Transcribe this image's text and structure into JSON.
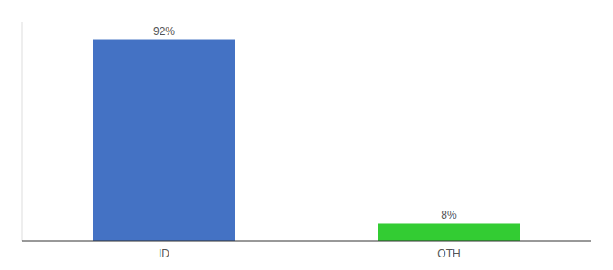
{
  "chart_data": {
    "type": "bar",
    "categories": [
      "ID",
      "OTH"
    ],
    "values": [
      92,
      8
    ],
    "value_labels": [
      "92%",
      "8%"
    ],
    "colors": [
      "#4472c4",
      "#33cc33"
    ],
    "ylim": [
      0,
      100
    ],
    "data_labels": true,
    "tick_labels": "x",
    "grid": false
  }
}
